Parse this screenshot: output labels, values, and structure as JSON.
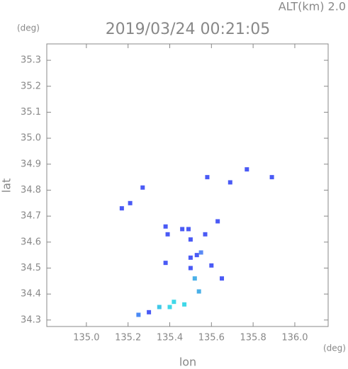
{
  "chart_data": {
    "type": "scatter",
    "title": "2019/03/24 00:21:05",
    "subtitle": "ALT(km) 2.0",
    "y_unit": "(deg)",
    "x_unit": "(deg)",
    "xlabel": "lon",
    "ylabel": "lat",
    "xlim": [
      134.81,
      136.16
    ],
    "ylim": [
      34.275,
      35.363
    ],
    "xticks": [
      {
        "value": 135.0,
        "label": "135.0"
      },
      135.2,
      135.4,
      135.6,
      135.8,
      {
        "value": 136.0,
        "label": "136.0"
      }
    ],
    "yticks": [
      34.3,
      34.4,
      34.5,
      34.6,
      34.7,
      34.8,
      34.9,
      {
        "value": 35.0,
        "label": "35.0"
      },
      35.1,
      35.2,
      35.3
    ],
    "x": [
      135.77,
      135.89,
      135.58,
      135.69,
      135.27,
      135.21,
      135.17,
      135.38,
      135.49,
      135.63,
      135.5,
      135.57,
      135.53,
      135.5,
      135.55,
      135.6,
      135.52,
      135.65,
      135.38,
      135.54,
      135.4,
      135.47,
      135.3,
      135.25,
      135.42,
      135.35,
      135.39,
      135.46,
      135.5
    ],
    "values": [
      34.88,
      34.85,
      34.85,
      34.83,
      34.81,
      34.75,
      34.73,
      34.66,
      34.65,
      34.68,
      34.61,
      34.63,
      34.55,
      34.5,
      34.56,
      34.51,
      34.46,
      34.46,
      34.52,
      34.41,
      34.35,
      34.36,
      34.33,
      34.32,
      34.37,
      34.35,
      34.63,
      34.65,
      34.54
    ],
    "colors": [
      "#4a5af5",
      "#4a5af5",
      "#4a5af5",
      "#4a5af5",
      "#4a5af5",
      "#4a5af5",
      "#4a5af5",
      "#4a5af5",
      "#4a5af5",
      "#4a5af5",
      "#4a5af5",
      "#4a5af5",
      "#4a5af5",
      "#4a5af5",
      "#5a8af5",
      "#4a5af5",
      "#4ab0e8",
      "#4a5af5",
      "#4a5af5",
      "#4ab0e8",
      "#40d8e8",
      "#40d8e8",
      "#4a5af5",
      "#4a8af5",
      "#40d8e8",
      "#40c8e8",
      "#4a5af5",
      "#4a5af5",
      "#4a5af5"
    ]
  }
}
